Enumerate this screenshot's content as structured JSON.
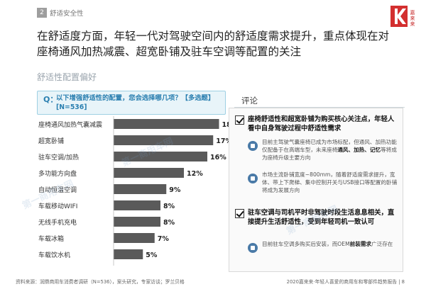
{
  "header": {
    "section_number": "2",
    "section_name": "舒适安全性",
    "brand_text": "嘉来来"
  },
  "headline": "在舒适度方面，年轻一代对驾驶空间内的舒适度需求提升，重点体现在对座椅通风加热减震、超宽卧铺及驻车空调等配置的关注",
  "subhead": "舒适性配置偏好",
  "question": {
    "prefix": "Q：",
    "text": "以下增强舒适性的配置，您会选择哪几项？【多选题】[N=536]"
  },
  "chart_data": {
    "type": "bar",
    "orientation": "horizontal",
    "categories": [
      "座椅通风加热气囊减震",
      "超宽卧铺",
      "驻车空调/加热",
      "多功能方向盘",
      "自动恒温空调",
      "车载移动WIFI",
      "无线手机充电",
      "车载冰箱",
      "车载饮水机"
    ],
    "values": [
      18,
      17,
      16,
      12,
      9,
      8,
      8,
      7,
      5
    ],
    "value_labels": [
      "18%",
      "17%",
      "16%",
      "12%",
      "9%",
      "8%",
      "8%",
      "7%",
      "5%"
    ],
    "xlim": [
      0,
      20
    ],
    "bar_color": "#5a5a5a",
    "title": "",
    "xlabel": "",
    "ylabel": ""
  },
  "comment": {
    "title": "评论",
    "point1": "座椅舒适性和超宽卧铺为购买核心关注点，年轻人看中自身驾驶过程中舒适性需求",
    "detail1_plain_a": "目前主驾驶气囊座椅已成为市场标配，但通风、加热功能仅配备于在高端车型，未来座椅",
    "detail1_bold": "通风、加热、记忆",
    "detail1_plain_b": "等将成为座椅升级主要方向",
    "detail2": "市场主流卧铺宽度~800mm，随着舒适度需求提升，宽体、带上下爬梯、集中控制开关与USB接口等配置的卧铺将成为发展方向",
    "point2": "驻车空调与司机平时非驾驶时段生活息息相关，直接提升生活舒适性，受到年轻司机一致认可",
    "detail3_plain_a": "目前驻车空调多购买后安装，而OEM",
    "detail3_bold": "前装需求",
    "detail3_plain_b": "广泛存在"
  },
  "footer": {
    "source": "资料来源：润鼎商用车消费者调研（N=536），案头研究，专家访谈；罗兰贝格",
    "right": "2020嘉来来·年轻人喜爱的商用车和零部件趋势报告",
    "page": "8"
  },
  "watermark": "第一商用车网"
}
